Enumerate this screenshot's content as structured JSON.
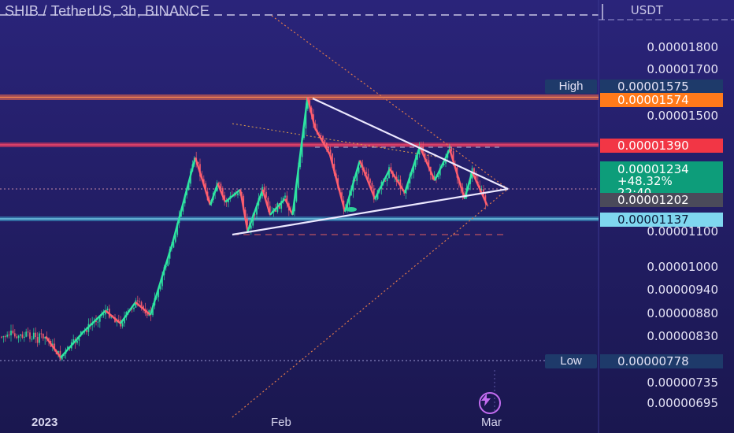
{
  "title": "SHIB / TetherUS, 3h, BINANCE",
  "currency": "USDT",
  "chart_data": {
    "type": "line",
    "symbol": "SHIB / TetherUS",
    "interval": "3h",
    "exchange": "BINANCE",
    "y_scale": "log",
    "ylim": [
      6.6e-06,
      1.95e-05
    ],
    "y_ticks": [
      "0.00001800",
      "0.00001700",
      "0.00001500",
      "0.00001100",
      "0.00001000",
      "0.00000940",
      "0.00000880",
      "0.00000830",
      "0.00000735",
      "0.00000695"
    ],
    "x_ticks": [
      "2023",
      "Feb",
      "Mar"
    ],
    "price_tags": {
      "high_label": "High",
      "high": "0.00001575",
      "resistance": "0.00001574",
      "level": "0.00001390",
      "last": "0.00001234",
      "change": "+48.32%",
      "countdown": "22:40",
      "prev": "0.00001202",
      "support": "0.00001137",
      "low_label": "Low",
      "low": "0.00000778"
    },
    "zigzag": [
      {
        "x": "2023-01-01",
        "y": 8.3e-06
      },
      {
        "x": "2023-01-03",
        "y": 7.85e-06
      },
      {
        "x": "2023-01-06",
        "y": 8.4e-06
      },
      {
        "x": "2023-01-09",
        "y": 8.9e-06
      },
      {
        "x": "2023-01-11",
        "y": 8.6e-06
      },
      {
        "x": "2023-01-13",
        "y": 9.1e-06
      },
      {
        "x": "2023-01-15",
        "y": 8.8e-06
      },
      {
        "x": "2023-01-18",
        "y": 1.07e-05
      },
      {
        "x": "2023-01-21",
        "y": 1.34e-05
      },
      {
        "x": "2023-01-23",
        "y": 1.18e-05
      },
      {
        "x": "2023-01-24",
        "y": 1.25e-05
      },
      {
        "x": "2023-01-25",
        "y": 1.19e-05
      },
      {
        "x": "2023-01-27",
        "y": 1.23e-05
      },
      {
        "x": "2023-01-28",
        "y": 1.1e-05
      },
      {
        "x": "2023-01-30",
        "y": 1.23e-05
      },
      {
        "x": "2023-01-31",
        "y": 1.15e-05
      },
      {
        "x": "2023-02-02",
        "y": 1.2e-05
      },
      {
        "x": "2023-02-03",
        "y": 1.15e-05
      },
      {
        "x": "2023-02-05",
        "y": 1.575e-05
      },
      {
        "x": "2023-02-06",
        "y": 1.45e-05
      },
      {
        "x": "2023-02-08",
        "y": 1.35e-05
      },
      {
        "x": "2023-02-10",
        "y": 1.16e-05
      },
      {
        "x": "2023-02-12",
        "y": 1.33e-05
      },
      {
        "x": "2023-02-14",
        "y": 1.2e-05
      },
      {
        "x": "2023-02-16",
        "y": 1.3e-05
      },
      {
        "x": "2023-02-18",
        "y": 1.22e-05
      },
      {
        "x": "2023-02-20",
        "y": 1.38e-05
      },
      {
        "x": "2023-02-22",
        "y": 1.26e-05
      },
      {
        "x": "2023-02-24",
        "y": 1.37e-05
      },
      {
        "x": "2023-02-26",
        "y": 1.2e-05
      },
      {
        "x": "2023-02-27",
        "y": 1.29e-05
      },
      {
        "x": "2023-03-01",
        "y": 1.18e-05
      }
    ]
  },
  "icons": {
    "lightning": "lightning-icon"
  }
}
